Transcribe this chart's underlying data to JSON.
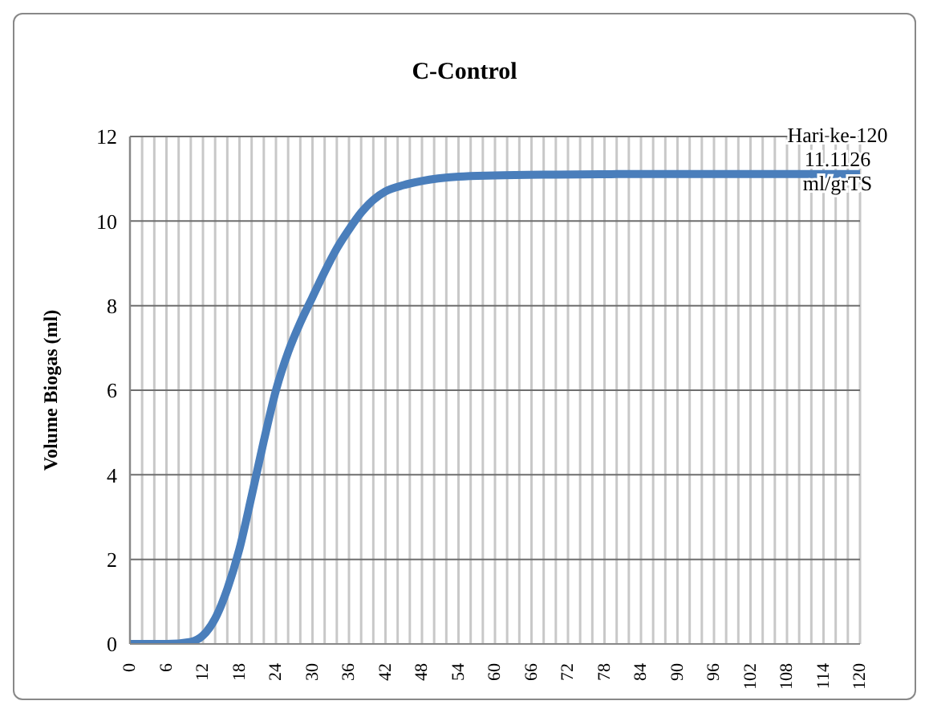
{
  "chart_data": {
    "type": "line",
    "title": "C-Control",
    "ylabel": "Volume Biogas (ml)",
    "x": [
      0,
      6,
      10,
      12,
      14,
      16,
      18,
      20,
      22,
      24,
      26,
      28,
      30,
      32,
      34,
      36,
      38,
      40,
      42,
      45,
      48,
      54,
      60,
      70,
      80,
      100,
      120
    ],
    "series": [
      {
        "color": "#4a7ebb",
        "values": [
          0,
          0,
          0.05,
          0.2,
          0.6,
          1.3,
          2.25,
          3.5,
          4.8,
          6.0,
          6.9,
          7.6,
          8.2,
          8.8,
          9.35,
          9.8,
          10.2,
          10.5,
          10.7,
          10.85,
          10.95,
          11.05,
          11.08,
          11.1,
          11.11,
          11.11,
          11.1126
        ]
      }
    ],
    "xlim": [
      0,
      120
    ],
    "xticks": [
      0,
      {
        "value": 2,
        "label": null
      },
      {
        "value": 4,
        "label": null
      },
      6,
      {
        "value": 8,
        "label": null
      },
      {
        "value": 10,
        "label": null
      },
      12,
      {
        "value": 14,
        "label": null
      },
      {
        "value": 16,
        "label": null
      },
      18,
      {
        "value": 20,
        "label": null
      },
      {
        "value": 22,
        "label": null
      },
      24,
      {
        "value": 26,
        "label": null
      },
      {
        "value": 28,
        "label": null
      },
      30,
      {
        "value": 32,
        "label": null
      },
      {
        "value": 34,
        "label": null
      },
      36,
      {
        "value": 38,
        "label": null
      },
      {
        "value": 40,
        "label": null
      },
      42,
      {
        "value": 44,
        "label": null
      },
      {
        "value": 46,
        "label": null
      },
      48,
      {
        "value": 50,
        "label": null
      },
      {
        "value": 52,
        "label": null
      },
      54,
      {
        "value": 56,
        "label": null
      },
      {
        "value": 58,
        "label": null
      },
      60,
      {
        "value": 62,
        "label": null
      },
      {
        "value": 64,
        "label": null
      },
      66,
      {
        "value": 68,
        "label": null
      },
      {
        "value": 70,
        "label": null
      },
      72,
      {
        "value": 74,
        "label": null
      },
      {
        "value": 76,
        "label": null
      },
      78,
      {
        "value": 80,
        "label": null
      },
      {
        "value": 82,
        "label": null
      },
      84,
      {
        "value": 86,
        "label": null
      },
      {
        "value": 88,
        "label": null
      },
      90,
      {
        "value": 92,
        "label": null
      },
      {
        "value": 94,
        "label": null
      },
      96,
      {
        "value": 98,
        "label": null
      },
      {
        "value": 100,
        "label": null
      },
      102,
      {
        "value": 104,
        "label": null
      },
      {
        "value": 106,
        "label": null
      },
      108,
      {
        "value": 110,
        "label": null
      },
      {
        "value": 112,
        "label": null
      },
      114,
      {
        "value": 116,
        "label": null
      },
      {
        "value": 118,
        "label": null
      },
      120
    ],
    "ylim": [
      0,
      12
    ],
    "yticks": [
      0,
      2,
      4,
      6,
      8,
      10,
      12
    ],
    "grid": true,
    "marker": "none",
    "line_style": "solid",
    "annotations": [
      {
        "text": "Hari ke-120\n11.1126\nml/grTS",
        "x": 120,
        "y": 11.1126
      }
    ]
  }
}
